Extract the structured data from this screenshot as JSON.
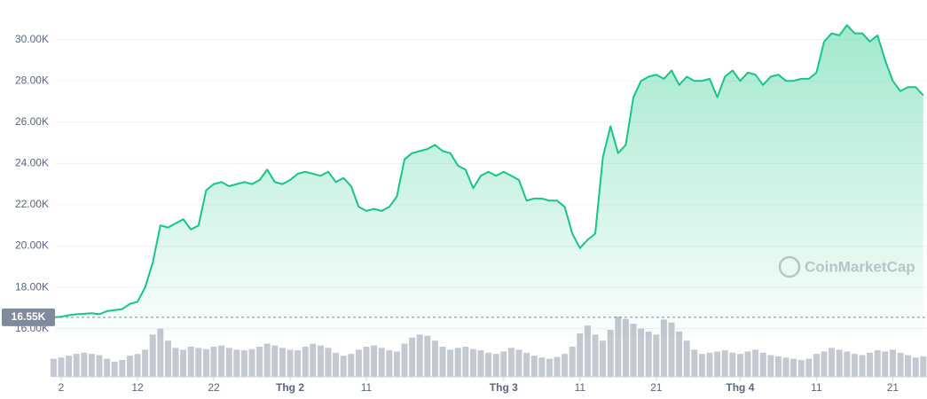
{
  "chart_data": {
    "type": "area",
    "watermark": "CoinMarketCap",
    "categories": [
      null,
      "2",
      null,
      null,
      null,
      null,
      null,
      null,
      null,
      null,
      null,
      "12",
      null,
      null,
      null,
      null,
      null,
      null,
      null,
      null,
      null,
      "22",
      null,
      null,
      null,
      null,
      null,
      null,
      null,
      null,
      null,
      "Thg 2",
      null,
      null,
      null,
      null,
      null,
      null,
      null,
      null,
      null,
      "11",
      null,
      null,
      null,
      null,
      null,
      null,
      null,
      null,
      null,
      null,
      null,
      null,
      null,
      null,
      null,
      null,
      null,
      "Thg 3",
      null,
      null,
      null,
      null,
      null,
      null,
      null,
      null,
      null,
      "11",
      null,
      null,
      null,
      null,
      null,
      null,
      null,
      null,
      null,
      "21",
      null,
      null,
      null,
      null,
      null,
      null,
      null,
      null,
      null,
      null,
      "Thg 4",
      null,
      null,
      null,
      null,
      null,
      null,
      null,
      null,
      null,
      "11",
      null,
      null,
      null,
      null,
      null,
      null,
      null,
      null,
      null,
      "21",
      null,
      null,
      null,
      null
    ],
    "series": [
      {
        "color": "#16c784",
        "values": [
          16550,
          16580,
          16650,
          16700,
          16720,
          16750,
          16700,
          16850,
          16900,
          16950,
          17200,
          17300,
          18000,
          19200,
          21000,
          20900,
          21100,
          21300,
          20800,
          21000,
          22700,
          23000,
          23100,
          22900,
          23000,
          23100,
          23000,
          23200,
          23700,
          23100,
          23000,
          23200,
          23500,
          23600,
          23500,
          23400,
          23600,
          23100,
          23300,
          22900,
          21900,
          21700,
          21800,
          21700,
          21900,
          22400,
          24200,
          24500,
          24600,
          24700,
          24900,
          24600,
          24500,
          23900,
          23700,
          22800,
          23400,
          23600,
          23400,
          23600,
          23400,
          23200,
          22200,
          22300,
          22300,
          22200,
          22200,
          21900,
          20600,
          19900,
          20300,
          20600,
          24300,
          25800,
          24500,
          24900,
          27200,
          28000,
          28200,
          28300,
          28100,
          28500,
          27800,
          28200,
          28000,
          28000,
          28100,
          27200,
          28200,
          28500,
          28000,
          28400,
          28300,
          27800,
          28200,
          28300,
          28000,
          28000,
          28100,
          28100,
          28400,
          29900,
          30300,
          30200,
          30700,
          30300,
          30300,
          29900,
          30200,
          29000,
          28000,
          27500,
          27700,
          27700,
          27300
        ]
      }
    ],
    "volume": [
      30,
      32,
      35,
      38,
      40,
      38,
      36,
      30,
      25,
      28,
      35,
      38,
      45,
      70,
      80,
      60,
      48,
      45,
      50,
      48,
      46,
      50,
      52,
      48,
      45,
      44,
      46,
      50,
      55,
      52,
      48,
      45,
      44,
      50,
      55,
      52,
      48,
      40,
      35,
      38,
      45,
      50,
      52,
      48,
      44,
      42,
      55,
      65,
      70,
      68,
      60,
      50,
      45,
      48,
      50,
      46,
      44,
      40,
      38,
      42,
      48,
      45,
      40,
      35,
      32,
      30,
      33,
      38,
      50,
      72,
      85,
      70,
      60,
      78,
      100,
      96,
      88,
      80,
      75,
      70,
      95,
      90,
      75,
      60,
      45,
      38,
      40,
      42,
      44,
      40,
      38,
      42,
      45,
      40,
      36,
      34,
      32,
      30,
      28,
      30,
      38,
      42,
      48,
      45,
      42,
      38,
      36,
      40,
      44,
      42,
      45,
      40,
      36,
      32,
      34
    ],
    "volume_color": "#c3c8d1",
    "reference": {
      "value": 16550,
      "label": "16.55K"
    },
    "ylim": [
      15600,
      31400
    ],
    "yticks": [
      {
        "value": 16000,
        "label": "16.00K"
      },
      {
        "value": 18000,
        "label": "18.00K"
      },
      {
        "value": 20000,
        "label": "20.00K"
      },
      {
        "value": 22000,
        "label": "22.00K"
      },
      {
        "value": 24000,
        "label": "24.00K"
      },
      {
        "value": 26000,
        "label": "26.00K"
      },
      {
        "value": 28000,
        "label": "28.00K"
      },
      {
        "value": 30000,
        "label": "30.00K"
      }
    ],
    "grid": true
  }
}
